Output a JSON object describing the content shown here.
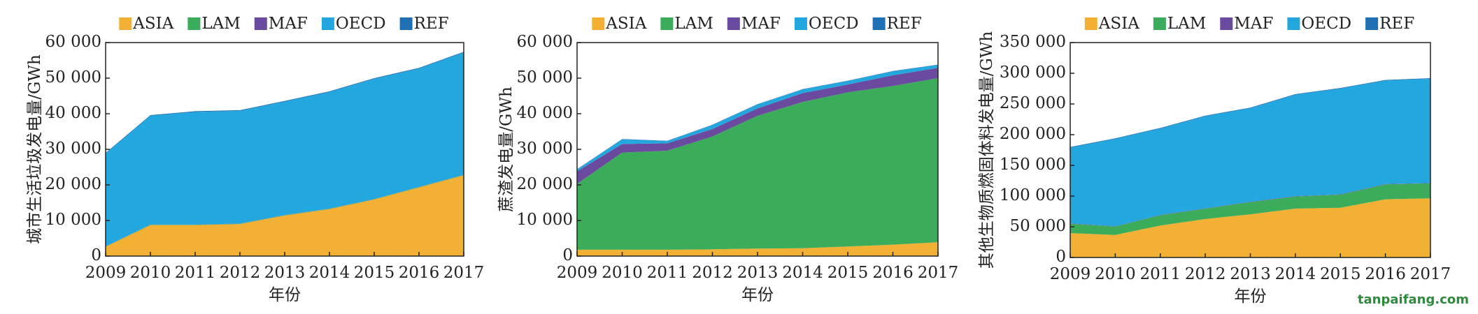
{
  "chart_data": [
    {
      "type": "area",
      "stacked": true,
      "y_label": "城市生活垃圾发电量/GWh",
      "x_label": "年份",
      "categories": [
        "2009",
        "2010",
        "2011",
        "2012",
        "2013",
        "2014",
        "2015",
        "2016",
        "2017"
      ],
      "ylim": [
        0,
        60000
      ],
      "yticks": [
        0,
        {
          "value": 10000,
          "label": "10 000"
        },
        {
          "value": 20000,
          "label": "20 000"
        },
        {
          "value": 30000,
          "label": "30 000"
        },
        {
          "value": 40000,
          "label": "40 000"
        },
        {
          "value": 50000,
          "label": "50 000"
        },
        {
          "value": 60000,
          "label": "60 000"
        }
      ],
      "series": [
        {
          "name": "ASIA",
          "color": "#f2b134",
          "values": [
            2600,
            8700,
            8700,
            9000,
            11400,
            13200,
            15900,
            19300,
            22700
          ]
        },
        {
          "name": "LAM",
          "color": "#3bad5a",
          "values": [
            100,
            100,
            100,
            100,
            100,
            100,
            100,
            100,
            100
          ]
        },
        {
          "name": "MAF",
          "color": "#6a4a9e",
          "values": [
            50,
            50,
            50,
            50,
            50,
            50,
            50,
            50,
            50
          ]
        },
        {
          "name": "OECD",
          "color": "#22a7de",
          "values": [
            26050,
            30550,
            31650,
            31650,
            31850,
            32750,
            33750,
            33250,
            34350
          ]
        },
        {
          "name": "REF",
          "color": "#1f6fb4",
          "values": [
            200,
            200,
            200,
            200,
            200,
            200,
            200,
            200,
            200
          ]
        }
      ]
    },
    {
      "type": "area",
      "stacked": true,
      "y_label": "蔗渣发电量/GWh",
      "x_label": "年份",
      "categories": [
        "2009",
        "2010",
        "2011",
        "2012",
        "2013",
        "2014",
        "2015",
        "2016",
        "2017"
      ],
      "ylim": [
        0,
        60000
      ],
      "yticks": [
        0,
        {
          "value": 10000,
          "label": "10 000"
        },
        {
          "value": 20000,
          "label": "20 000"
        },
        {
          "value": 30000,
          "label": "30 000"
        },
        {
          "value": 40000,
          "label": "40 000"
        },
        {
          "value": 50000,
          "label": "50 000"
        },
        {
          "value": 60000,
          "label": "60 000"
        }
      ],
      "series": [
        {
          "name": "ASIA",
          "color": "#f2b134",
          "values": [
            1800,
            1800,
            1800,
            1900,
            2100,
            2200,
            2700,
            3200,
            3900
          ]
        },
        {
          "name": "LAM",
          "color": "#3bad5a",
          "values": [
            18500,
            27300,
            27800,
            31700,
            37300,
            41100,
            43300,
            44600,
            46100
          ]
        },
        {
          "name": "MAF",
          "color": "#6a4a9e",
          "values": [
            3500,
            2400,
            2100,
            2100,
            2100,
            2500,
            2200,
            3000,
            2900
          ]
        },
        {
          "name": "OECD",
          "color": "#22a7de",
          "values": [
            500,
            1300,
            600,
            1100,
            1100,
            1000,
            1000,
            1100,
            800
          ]
        },
        {
          "name": "REF",
          "color": "#1f6fb4",
          "values": [
            100,
            100,
            100,
            100,
            100,
            100,
            100,
            100,
            100
          ]
        }
      ]
    },
    {
      "type": "area",
      "stacked": true,
      "y_label": "其他生物质燃固体料发电量/GWh",
      "x_label": "年份",
      "categories": [
        "2009",
        "2010",
        "2011",
        "2012",
        "2013",
        "2014",
        "2015",
        "2016",
        "2017"
      ],
      "ylim": [
        0,
        350000
      ],
      "yticks": [
        0,
        {
          "value": 50000,
          "label": "50 000"
        },
        {
          "value": 100000,
          "label": "100 000"
        },
        {
          "value": 150000,
          "label": "150 000"
        },
        {
          "value": 200000,
          "label": "200 000"
        },
        {
          "value": 250000,
          "label": "250 000"
        },
        {
          "value": 300000,
          "label": "300 000"
        },
        {
          "value": 350000,
          "label": "350 000"
        }
      ],
      "series": [
        {
          "name": "ASIA",
          "color": "#f2b134",
          "values": [
            39700,
            36700,
            52000,
            62700,
            70300,
            79500,
            81000,
            94700,
            96300
          ]
        },
        {
          "name": "LAM",
          "color": "#3bad5a",
          "values": [
            15300,
            13700,
            16800,
            16800,
            19900,
            19800,
            21300,
            24400,
            24400
          ]
        },
        {
          "name": "MAF",
          "color": "#6a4a9e",
          "values": [
            500,
            500,
            500,
            500,
            500,
            500,
            500,
            500,
            500
          ]
        },
        {
          "name": "OECD",
          "color": "#22a7de",
          "values": [
            123500,
            142100,
            140700,
            150000,
            152300,
            165200,
            172200,
            168400,
            169800
          ]
        },
        {
          "name": "REF",
          "color": "#1f6fb4",
          "values": [
            1000,
            1000,
            1000,
            1000,
            1000,
            1000,
            1000,
            1000,
            1000
          ]
        }
      ]
    }
  ],
  "watermark": "tanpaifang.com"
}
